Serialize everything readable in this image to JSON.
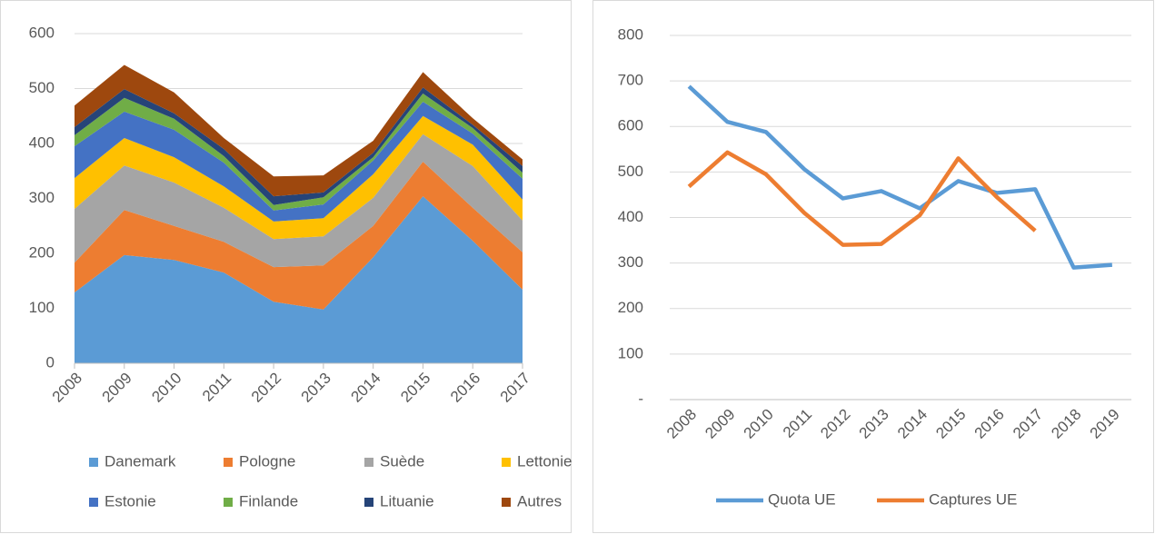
{
  "chart_data": [
    {
      "type": "area",
      "stacked": true,
      "categories": [
        "2008",
        "2009",
        "2010",
        "2011",
        "2012",
        "2013",
        "2014",
        "2015",
        "2016",
        "2017"
      ],
      "series": [
        {
          "name": "Danemark",
          "color": "#5b9bd5",
          "values": [
            129,
            197,
            188,
            165,
            112,
            98,
            193,
            304,
            223,
            134
          ]
        },
        {
          "name": "Pologne",
          "color": "#ed7d31",
          "values": [
            54,
            82,
            62,
            56,
            63,
            80,
            57,
            63,
            60,
            68
          ]
        },
        {
          "name": "Suède",
          "color": "#a5a5a5",
          "values": [
            98,
            81,
            79,
            62,
            51,
            53,
            51,
            50,
            76,
            58
          ]
        },
        {
          "name": "Lettonie",
          "color": "#ffc000",
          "values": [
            56,
            50,
            46,
            39,
            32,
            33,
            43,
            33,
            39,
            38
          ]
        },
        {
          "name": "Estonie",
          "color": "#4472c4",
          "values": [
            58,
            48,
            50,
            43,
            20,
            25,
            25,
            26,
            20,
            38
          ]
        },
        {
          "name": "Finlande",
          "color": "#70ad47",
          "values": [
            20,
            25,
            20,
            12,
            10,
            13,
            6,
            15,
            10,
            11
          ]
        },
        {
          "name": "Lituanie",
          "color": "#264478",
          "values": [
            15,
            16,
            10,
            13,
            16,
            9,
            8,
            11,
            6,
            12
          ]
        },
        {
          "name": "Autres",
          "color": "#9e480e",
          "values": [
            39,
            44,
            38,
            20,
            36,
            31,
            22,
            28,
            12,
            12
          ]
        }
      ],
      "ylim": [
        0,
        600
      ],
      "yticks": [
        0,
        100,
        200,
        300,
        400,
        500,
        600
      ],
      "grid": true,
      "legend": "bottom"
    },
    {
      "type": "line",
      "categories": [
        "2008",
        "2009",
        "2010",
        "2011",
        "2012",
        "2013",
        "2014",
        "2015",
        "2016",
        "2017",
        "2018",
        "2019"
      ],
      "series": [
        {
          "name": "Quota UE",
          "color": "#5b9bd5",
          "values": [
            688,
            610,
            588,
            506,
            442,
            458,
            420,
            480,
            454,
            462,
            290,
            296
          ]
        },
        {
          "name": "Captures UE",
          "color": "#ed7d31",
          "values": [
            468,
            543,
            495,
            410,
            340,
            342,
            405,
            530,
            445,
            371,
            null,
            null
          ]
        }
      ],
      "ylim": [
        0,
        800
      ],
      "yticks": [
        {
          "value": 0,
          "label": "-"
        },
        100,
        200,
        300,
        400,
        500,
        600,
        700,
        800
      ],
      "grid": true,
      "legend": "bottom"
    }
  ]
}
